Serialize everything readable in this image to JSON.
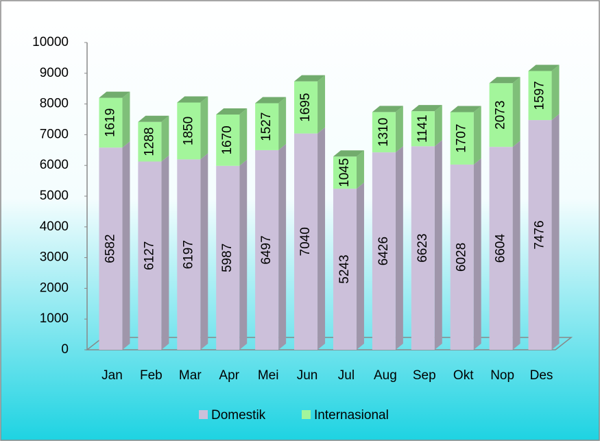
{
  "chart_data": {
    "type": "bar",
    "stacked": true,
    "categories": [
      "Jan",
      "Feb",
      "Mar",
      "Apr",
      "Mei",
      "Jun",
      "Jul",
      "Aug",
      "Sep",
      "Okt",
      "Nop",
      "Des"
    ],
    "series": [
      {
        "name": "Domestik",
        "color": "#ccc0da",
        "values": [
          6582,
          6127,
          6197,
          5987,
          6497,
          7040,
          5243,
          6426,
          6623,
          6028,
          6604,
          7476
        ]
      },
      {
        "name": "Internasional",
        "color": "#a3f59b",
        "values": [
          1619,
          1288,
          1850,
          1670,
          1527,
          1695,
          1045,
          1310,
          1141,
          1707,
          2073,
          1597
        ]
      }
    ],
    "ylim": [
      0,
      10000
    ],
    "yticks": [
      0,
      1000,
      2000,
      3000,
      4000,
      5000,
      6000,
      7000,
      8000,
      9000,
      10000
    ],
    "legend": "bottom"
  }
}
